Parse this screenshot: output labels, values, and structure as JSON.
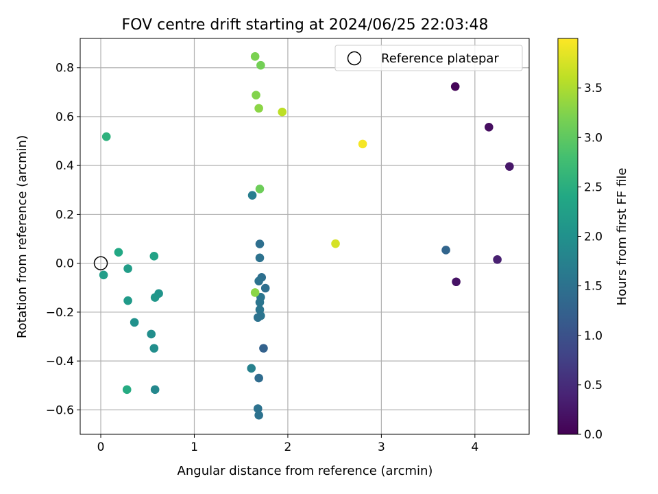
{
  "chart_data": {
    "type": "scatter",
    "title": "FOV centre drift starting at 2024/06/25 22:03:48",
    "xlabel": "Angular distance from reference (arcmin)",
    "ylabel": "Rotation from reference (arcmin)",
    "xlim": [
      -0.22,
      4.58
    ],
    "ylim": [
      -0.7,
      0.92
    ],
    "xticks": [
      0,
      1,
      2,
      3,
      4
    ],
    "yticks": [
      -0.6,
      -0.4,
      -0.2,
      0.0,
      0.2,
      0.4,
      0.6,
      0.8
    ],
    "xtick_labels": [
      "0",
      "1",
      "2",
      "3",
      "4"
    ],
    "ytick_labels": [
      "−0.6",
      "−0.4",
      "−0.2",
      "0.0",
      "0.2",
      "0.4",
      "0.6",
      "0.8"
    ],
    "grid": true,
    "legend": {
      "placement": "top-right",
      "entries": [
        "Reference platepar"
      ]
    },
    "reference_point": {
      "x": 0,
      "y": 0
    },
    "colorbar": {
      "label": "Hours from first FF file",
      "range": [
        0,
        4.0
      ],
      "ticks": [
        0.0,
        0.5,
        1.0,
        1.5,
        2.0,
        2.5,
        3.0,
        3.5
      ],
      "tick_labels": [
        "0.0",
        "0.5",
        "1.0",
        "1.5",
        "2.0",
        "2.5",
        "3.0",
        "3.5"
      ],
      "colormap": "viridis"
    },
    "points": [
      {
        "x": 3.79,
        "y": 0.723,
        "c": 0.05
      },
      {
        "x": 4.15,
        "y": 0.557,
        "c": 0.15
      },
      {
        "x": 4.37,
        "y": 0.396,
        "c": 0.25
      },
      {
        "x": 4.24,
        "y": 0.015,
        "c": 0.35
      },
      {
        "x": 3.8,
        "y": -0.076,
        "c": 0.2
      },
      {
        "x": 3.69,
        "y": 0.054,
        "c": 1.3
      },
      {
        "x": 1.74,
        "y": -0.348,
        "c": 1.25
      },
      {
        "x": 1.69,
        "y": -0.47,
        "c": 1.4
      },
      {
        "x": 1.68,
        "y": -0.595,
        "c": 1.5
      },
      {
        "x": 1.69,
        "y": -0.622,
        "c": 1.5
      },
      {
        "x": 1.7,
        "y": 0.079,
        "c": 1.45
      },
      {
        "x": 1.7,
        "y": 0.022,
        "c": 1.5
      },
      {
        "x": 1.72,
        "y": -0.058,
        "c": 1.45
      },
      {
        "x": 1.69,
        "y": -0.073,
        "c": 1.5
      },
      {
        "x": 1.76,
        "y": -0.102,
        "c": 1.45
      },
      {
        "x": 1.71,
        "y": -0.139,
        "c": 1.55
      },
      {
        "x": 1.7,
        "y": -0.16,
        "c": 1.55
      },
      {
        "x": 1.7,
        "y": -0.19,
        "c": 1.55
      },
      {
        "x": 1.71,
        "y": -0.215,
        "c": 1.55
      },
      {
        "x": 1.68,
        "y": -0.222,
        "c": 1.5
      },
      {
        "x": 1.62,
        "y": 0.278,
        "c": 1.7
      },
      {
        "x": 1.61,
        "y": -0.43,
        "c": 1.75
      },
      {
        "x": 0.58,
        "y": -0.517,
        "c": 1.85
      },
      {
        "x": 0.57,
        "y": -0.348,
        "c": 1.95
      },
      {
        "x": 0.54,
        "y": -0.29,
        "c": 1.95
      },
      {
        "x": 0.36,
        "y": -0.242,
        "c": 2.0
      },
      {
        "x": 0.62,
        "y": -0.124,
        "c": 2.05
      },
      {
        "x": 0.58,
        "y": -0.14,
        "c": 2.1
      },
      {
        "x": 0.29,
        "y": -0.153,
        "c": 2.15
      },
      {
        "x": 0.29,
        "y": -0.022,
        "c": 2.2
      },
      {
        "x": 0.03,
        "y": -0.048,
        "c": 2.2
      },
      {
        "x": 0.57,
        "y": 0.029,
        "c": 2.3
      },
      {
        "x": 0.19,
        "y": 0.045,
        "c": 2.4
      },
      {
        "x": 0.28,
        "y": -0.517,
        "c": 2.45
      },
      {
        "x": 0.06,
        "y": 0.518,
        "c": 2.55
      },
      {
        "x": 1.7,
        "y": 0.304,
        "c": 3.1
      },
      {
        "x": 1.65,
        "y": 0.846,
        "c": 3.2
      },
      {
        "x": 1.71,
        "y": 0.81,
        "c": 3.15
      },
      {
        "x": 1.66,
        "y": 0.688,
        "c": 3.25
      },
      {
        "x": 1.69,
        "y": 0.634,
        "c": 3.3
      },
      {
        "x": 1.65,
        "y": -0.12,
        "c": 3.3
      },
      {
        "x": 1.94,
        "y": 0.619,
        "c": 3.6
      },
      {
        "x": 2.51,
        "y": 0.08,
        "c": 3.75
      },
      {
        "x": 2.8,
        "y": 0.488,
        "c": 3.95
      }
    ]
  }
}
